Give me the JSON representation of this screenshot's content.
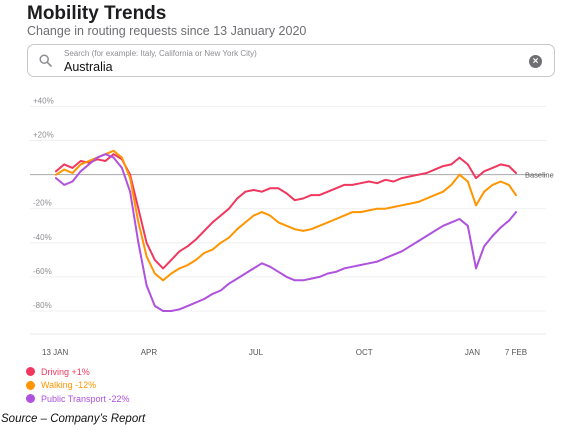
{
  "header": {
    "title": "Mobility Trends",
    "subtitle": "Change in routing requests since 13 January 2020"
  },
  "search": {
    "placeholder": "Search (for example: Italy, California or New York City)",
    "value": "Australia",
    "icon": "search-icon",
    "clear_icon": "clear-icon"
  },
  "chart_data": {
    "type": "line",
    "ylim": [
      -90,
      45
    ],
    "y_ticks": [
      40,
      20,
      0,
      -20,
      -40,
      -60,
      -80
    ],
    "y_tick_labels": [
      "+40%",
      "+20%",
      "",
      "-20%",
      "-40%",
      "-60%",
      "-80%"
    ],
    "x_ticks": [
      "2020-01-13",
      "2020-04-01",
      "2020-07-01",
      "2020-10-01",
      "2021-01-01",
      "2021-02-07"
    ],
    "x_tick_labels": [
      "13 JAN",
      "APR",
      "JUL",
      "OCT",
      "JAN",
      "7 FEB"
    ],
    "baseline_label": "Baseline",
    "grid": true,
    "series": [
      {
        "name": "Driving +1%",
        "color": "#f0385f",
        "points": [
          [
            "2020-01-13",
            2
          ],
          [
            "2020-01-20",
            6
          ],
          [
            "2020-01-27",
            4
          ],
          [
            "2020-02-03",
            8
          ],
          [
            "2020-02-10",
            7
          ],
          [
            "2020-02-17",
            9
          ],
          [
            "2020-02-24",
            8
          ],
          [
            "2020-03-02",
            12
          ],
          [
            "2020-03-09",
            9
          ],
          [
            "2020-03-16",
            0
          ],
          [
            "2020-03-23",
            -20
          ],
          [
            "2020-03-30",
            -40
          ],
          [
            "2020-04-06",
            -50
          ],
          [
            "2020-04-13",
            -55
          ],
          [
            "2020-04-20",
            -50
          ],
          [
            "2020-04-27",
            -45
          ],
          [
            "2020-05-04",
            -42
          ],
          [
            "2020-05-11",
            -38
          ],
          [
            "2020-05-18",
            -33
          ],
          [
            "2020-05-25",
            -28
          ],
          [
            "2020-06-01",
            -24
          ],
          [
            "2020-06-08",
            -20
          ],
          [
            "2020-06-15",
            -14
          ],
          [
            "2020-06-22",
            -10
          ],
          [
            "2020-06-29",
            -9
          ],
          [
            "2020-07-06",
            -10
          ],
          [
            "2020-07-13",
            -8
          ],
          [
            "2020-07-20",
            -8
          ],
          [
            "2020-07-27",
            -11
          ],
          [
            "2020-08-03",
            -15
          ],
          [
            "2020-08-10",
            -14
          ],
          [
            "2020-08-17",
            -12
          ],
          [
            "2020-08-24",
            -12
          ],
          [
            "2020-08-31",
            -10
          ],
          [
            "2020-09-07",
            -8
          ],
          [
            "2020-09-14",
            -6
          ],
          [
            "2020-09-21",
            -6
          ],
          [
            "2020-09-28",
            -5
          ],
          [
            "2020-10-05",
            -4
          ],
          [
            "2020-10-12",
            -5
          ],
          [
            "2020-10-19",
            -3
          ],
          [
            "2020-10-26",
            -4
          ],
          [
            "2020-11-02",
            -2
          ],
          [
            "2020-11-09",
            -1
          ],
          [
            "2020-11-16",
            0
          ],
          [
            "2020-11-23",
            1
          ],
          [
            "2020-11-30",
            3
          ],
          [
            "2020-12-07",
            5
          ],
          [
            "2020-12-14",
            6
          ],
          [
            "2020-12-21",
            10
          ],
          [
            "2020-12-28",
            6
          ],
          [
            "2021-01-04",
            -2
          ],
          [
            "2021-01-11",
            2
          ],
          [
            "2021-01-18",
            4
          ],
          [
            "2021-01-25",
            6
          ],
          [
            "2021-02-01",
            5
          ],
          [
            "2021-02-07",
            1
          ]
        ]
      },
      {
        "name": "Walking -12%",
        "color": "#ff9500",
        "points": [
          [
            "2020-01-13",
            0
          ],
          [
            "2020-01-20",
            3
          ],
          [
            "2020-01-27",
            1
          ],
          [
            "2020-02-03",
            6
          ],
          [
            "2020-02-10",
            8
          ],
          [
            "2020-02-17",
            10
          ],
          [
            "2020-02-24",
            12
          ],
          [
            "2020-03-02",
            14
          ],
          [
            "2020-03-09",
            10
          ],
          [
            "2020-03-16",
            -2
          ],
          [
            "2020-03-23",
            -28
          ],
          [
            "2020-03-30",
            -48
          ],
          [
            "2020-04-06",
            -58
          ],
          [
            "2020-04-13",
            -62
          ],
          [
            "2020-04-20",
            -58
          ],
          [
            "2020-04-27",
            -55
          ],
          [
            "2020-05-04",
            -53
          ],
          [
            "2020-05-11",
            -50
          ],
          [
            "2020-05-18",
            -46
          ],
          [
            "2020-05-25",
            -44
          ],
          [
            "2020-06-01",
            -40
          ],
          [
            "2020-06-08",
            -37
          ],
          [
            "2020-06-15",
            -32
          ],
          [
            "2020-06-22",
            -28
          ],
          [
            "2020-06-29",
            -24
          ],
          [
            "2020-07-06",
            -22
          ],
          [
            "2020-07-13",
            -24
          ],
          [
            "2020-07-20",
            -28
          ],
          [
            "2020-07-27",
            -30
          ],
          [
            "2020-08-03",
            -32
          ],
          [
            "2020-08-10",
            -33
          ],
          [
            "2020-08-17",
            -32
          ],
          [
            "2020-08-24",
            -30
          ],
          [
            "2020-08-31",
            -28
          ],
          [
            "2020-09-07",
            -26
          ],
          [
            "2020-09-14",
            -24
          ],
          [
            "2020-09-21",
            -22
          ],
          [
            "2020-09-28",
            -22
          ],
          [
            "2020-10-05",
            -21
          ],
          [
            "2020-10-12",
            -20
          ],
          [
            "2020-10-19",
            -20
          ],
          [
            "2020-10-26",
            -19
          ],
          [
            "2020-11-02",
            -18
          ],
          [
            "2020-11-09",
            -17
          ],
          [
            "2020-11-16",
            -16
          ],
          [
            "2020-11-23",
            -14
          ],
          [
            "2020-11-30",
            -12
          ],
          [
            "2020-12-07",
            -10
          ],
          [
            "2020-12-14",
            -6
          ],
          [
            "2020-12-21",
            0
          ],
          [
            "2020-12-28",
            -4
          ],
          [
            "2021-01-04",
            -18
          ],
          [
            "2021-01-11",
            -10
          ],
          [
            "2021-01-18",
            -6
          ],
          [
            "2021-01-25",
            -4
          ],
          [
            "2021-02-01",
            -6
          ],
          [
            "2021-02-07",
            -12
          ]
        ]
      },
      {
        "name": "Public Transport -22%",
        "color": "#af52de",
        "points": [
          [
            "2020-01-13",
            -2
          ],
          [
            "2020-01-20",
            -6
          ],
          [
            "2020-01-27",
            -4
          ],
          [
            "2020-02-03",
            2
          ],
          [
            "2020-02-10",
            6
          ],
          [
            "2020-02-17",
            10
          ],
          [
            "2020-02-24",
            12
          ],
          [
            "2020-03-02",
            10
          ],
          [
            "2020-03-09",
            4
          ],
          [
            "2020-03-16",
            -10
          ],
          [
            "2020-03-23",
            -40
          ],
          [
            "2020-03-30",
            -65
          ],
          [
            "2020-04-06",
            -77
          ],
          [
            "2020-04-13",
            -80
          ],
          [
            "2020-04-20",
            -80
          ],
          [
            "2020-04-27",
            -79
          ],
          [
            "2020-05-04",
            -77
          ],
          [
            "2020-05-11",
            -75
          ],
          [
            "2020-05-18",
            -73
          ],
          [
            "2020-05-25",
            -70
          ],
          [
            "2020-06-01",
            -68
          ],
          [
            "2020-06-08",
            -64
          ],
          [
            "2020-06-15",
            -61
          ],
          [
            "2020-06-22",
            -58
          ],
          [
            "2020-06-29",
            -55
          ],
          [
            "2020-07-06",
            -52
          ],
          [
            "2020-07-13",
            -54
          ],
          [
            "2020-07-20",
            -57
          ],
          [
            "2020-07-27",
            -60
          ],
          [
            "2020-08-03",
            -62
          ],
          [
            "2020-08-10",
            -62
          ],
          [
            "2020-08-17",
            -61
          ],
          [
            "2020-08-24",
            -60
          ],
          [
            "2020-08-31",
            -58
          ],
          [
            "2020-09-07",
            -57
          ],
          [
            "2020-09-14",
            -55
          ],
          [
            "2020-09-21",
            -54
          ],
          [
            "2020-09-28",
            -53
          ],
          [
            "2020-10-05",
            -52
          ],
          [
            "2020-10-12",
            -51
          ],
          [
            "2020-10-19",
            -49
          ],
          [
            "2020-10-26",
            -47
          ],
          [
            "2020-11-02",
            -45
          ],
          [
            "2020-11-09",
            -42
          ],
          [
            "2020-11-16",
            -39
          ],
          [
            "2020-11-23",
            -36
          ],
          [
            "2020-11-30",
            -33
          ],
          [
            "2020-12-07",
            -30
          ],
          [
            "2020-12-14",
            -28
          ],
          [
            "2020-12-21",
            -26
          ],
          [
            "2020-12-28",
            -30
          ],
          [
            "2021-01-04",
            -55
          ],
          [
            "2021-01-11",
            -42
          ],
          [
            "2021-01-18",
            -36
          ],
          [
            "2021-01-25",
            -31
          ],
          [
            "2021-02-01",
            -27
          ],
          [
            "2021-02-07",
            -22
          ]
        ]
      }
    ]
  },
  "source_note": "Source – Company’s Report"
}
